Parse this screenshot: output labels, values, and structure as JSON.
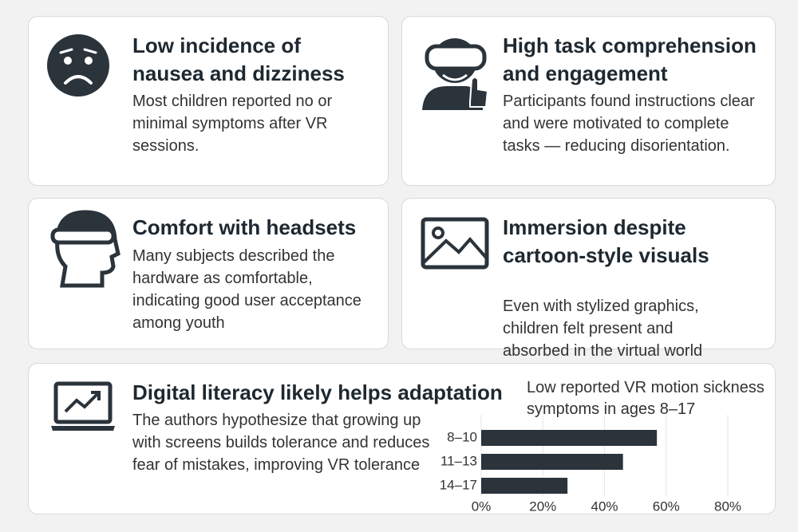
{
  "cards": [
    {
      "title": "Low incidence of nausea and dizziness",
      "body": "Most children reported no or minimal symptoms after VR sessions."
    },
    {
      "title": "High task comprehension and engagement",
      "body": "Participants found instructions clear and were motivated to complete tasks — reducing disorientation."
    },
    {
      "title": "Comfort with headsets",
      "body": "Many subjects described the hardware as comfortable, indicating good user acceptance among youth"
    },
    {
      "title": "Immersion despite cartoon-style visuals",
      "body": "Even with stylized graphics, children felt present and absorbed in the virtual world"
    },
    {
      "title": "Digital literacy likely helps adaptation",
      "body": "The authors hypothesize that growing up with screens builds tolerance and reduces fear of mistakes, improving VR tolerance"
    }
  ],
  "chart_data": {
    "type": "bar",
    "orientation": "horizontal",
    "title": "Low reported VR motion sickness symptoms in ages 8–17",
    "categories": [
      "8–10",
      "11–13",
      "14–17"
    ],
    "values": [
      57,
      46,
      28
    ],
    "color": "#2b333b",
    "xlim": [
      0,
      80
    ],
    "xticks": [
      {
        "value": 0,
        "label": "0%"
      },
      {
        "value": 20,
        "label": "20%"
      },
      {
        "value": 40,
        "label": "40%"
      },
      {
        "value": 60,
        "label": "60%"
      },
      {
        "value": 80,
        "label": "80%"
      }
    ],
    "grid": true
  }
}
